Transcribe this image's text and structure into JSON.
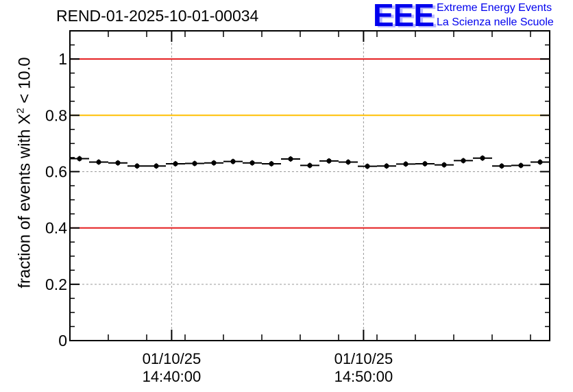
{
  "run_title": "REND-01-2025-10-01-00034",
  "logo": {
    "mark": "EEE",
    "line1": "Extreme Energy Events",
    "line2": "La Scienza nelle Scuole"
  },
  "colors": {
    "red_line": "#e41a1c",
    "orange_line": "#ffbf00",
    "logo_blue": "#0000ee",
    "grid": "#999999"
  },
  "chart_data": {
    "type": "scatter",
    "title": "REND-01-2025-10-01-00034",
    "ylabel_prefix": "fraction of events with ",
    "ylabel_symbol": "X",
    "ylabel_sup": "2",
    "ylabel_suffix": " < 10.0",
    "xlabel": "",
    "ylim": [
      0,
      1.1
    ],
    "xlim_minutes": [
      0,
      25
    ],
    "yticks": [
      {
        "value": 0,
        "label": "0"
      },
      {
        "value": 0.2,
        "label": "0.2"
      },
      {
        "value": 0.4,
        "label": "0.4"
      },
      {
        "value": 0.6,
        "label": "0.6"
      },
      {
        "value": 0.8,
        "label": "0.8"
      },
      {
        "value": 1,
        "label": "1"
      }
    ],
    "xticks": [
      {
        "minute": 5.3,
        "date": "01/10/25",
        "time": "14:40:00"
      },
      {
        "minute": 15.3,
        "date": "01/10/25",
        "time": "14:50:00"
      }
    ],
    "reference_lines": [
      {
        "value": 1.0,
        "color": "red"
      },
      {
        "value": 0.8,
        "color": "orange"
      },
      {
        "value": 0.4,
        "color": "red"
      }
    ],
    "bin_width_minutes": 1,
    "series": [
      {
        "name": "fraction",
        "x": [
          0.5,
          1.5,
          2.5,
          3.5,
          4.5,
          5.5,
          6.5,
          7.5,
          8.5,
          9.5,
          10.5,
          11.5,
          12.5,
          13.5,
          14.5,
          15.5,
          16.5,
          17.5,
          18.5,
          19.5,
          20.5,
          21.5,
          22.5,
          23.5,
          24.5
        ],
        "y": [
          0.646,
          0.634,
          0.631,
          0.62,
          0.62,
          0.628,
          0.629,
          0.631,
          0.636,
          0.631,
          0.628,
          0.645,
          0.622,
          0.638,
          0.634,
          0.619,
          0.62,
          0.627,
          0.628,
          0.624,
          0.639,
          0.648,
          0.62,
          0.622,
          0.634
        ]
      }
    ]
  }
}
